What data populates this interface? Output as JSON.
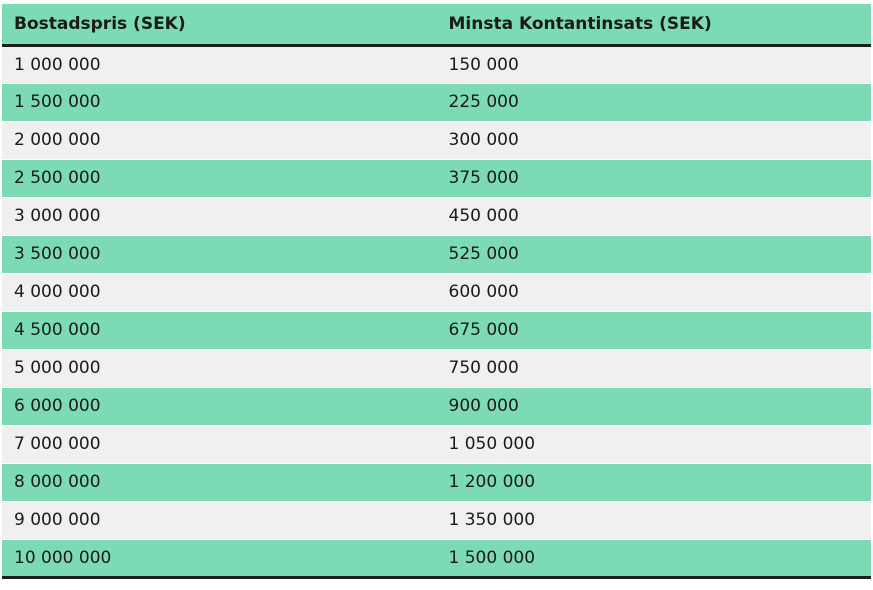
{
  "colors": {
    "header_and_even_row_green": "#7cdbb4",
    "odd_row_gray": "#f0f0f0",
    "dark_border": "#1c1c1c",
    "text": "#1a1a1a"
  },
  "table": {
    "headers": [
      "Bostadspris (SEK)",
      "Minsta Kontantinsats (SEK)"
    ],
    "rows": [
      [
        "1 000 000",
        "150 000"
      ],
      [
        "1 500 000",
        "225 000"
      ],
      [
        "2 000 000",
        "300 000"
      ],
      [
        "2 500 000",
        "375 000"
      ],
      [
        "3 000 000",
        "450 000"
      ],
      [
        "3 500 000",
        "525 000"
      ],
      [
        "4 000 000",
        "600 000"
      ],
      [
        "4 500 000",
        "675 000"
      ],
      [
        "5 000 000",
        "750 000"
      ],
      [
        "6 000 000",
        "900 000"
      ],
      [
        "7 000 000",
        "1 050 000"
      ],
      [
        "8 000 000",
        "1 200 000"
      ],
      [
        "9 000 000",
        "1 350 000"
      ],
      [
        "10 000 000",
        "1 500 000"
      ]
    ]
  },
  "chart_data": {
    "type": "table",
    "title": "",
    "columns": [
      "Bostadspris (SEK)",
      "Minsta Kontantinsats (SEK)"
    ],
    "bostadspris_sek": [
      1000000,
      1500000,
      2000000,
      2500000,
      3000000,
      3500000,
      4000000,
      4500000,
      5000000,
      6000000,
      7000000,
      8000000,
      9000000,
      10000000
    ],
    "minsta_kontantinsats_sek": [
      150000,
      225000,
      300000,
      375000,
      450000,
      525000,
      600000,
      675000,
      750000,
      900000,
      1050000,
      1200000,
      1350000,
      1500000
    ]
  }
}
